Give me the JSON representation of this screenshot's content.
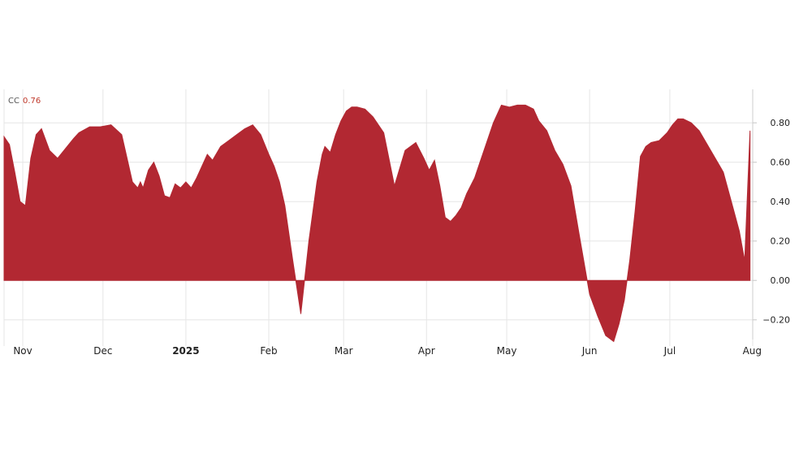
{
  "chart_data": {
    "type": "area",
    "title": "",
    "xlabel": "",
    "ylabel": "",
    "x_range": [
      "2024-10-25",
      "2025-08-01"
    ],
    "ylim": [
      -0.3,
      0.97
    ],
    "y_ticks": [
      0.8,
      0.6,
      0.4,
      0.2,
      0.0,
      -0.2
    ],
    "y_tick_labels": [
      "0.80",
      "0.60",
      "0.40",
      "0.20",
      "0.00",
      "−0.20"
    ],
    "x_ticks": [
      {
        "date": "2024-11-01",
        "label": "Nov",
        "bold": false
      },
      {
        "date": "2024-12-01",
        "label": "Dec",
        "bold": false
      },
      {
        "date": "2025-01-01",
        "label": "2025",
        "bold": true
      },
      {
        "date": "2025-02-01",
        "label": "Feb",
        "bold": false
      },
      {
        "date": "2025-03-01",
        "label": "Mar",
        "bold": false
      },
      {
        "date": "2025-04-01",
        "label": "Apr",
        "bold": false
      },
      {
        "date": "2025-05-01",
        "label": "May",
        "bold": false
      },
      {
        "date": "2025-06-01",
        "label": "Jun",
        "bold": false
      },
      {
        "date": "2025-07-01",
        "label": "Jul",
        "bold": false
      },
      {
        "date": "2025-08-01",
        "label": "Aug",
        "bold": false
      }
    ],
    "grid": true,
    "legend": {
      "name": "CC",
      "value": "0.76",
      "placement": "top-left"
    },
    "colors": {
      "series": "#b22832",
      "legend_value": "#c0392b"
    },
    "series": [
      {
        "x": [
          "2024-10-25",
          "2024-10-27",
          "2024-10-29",
          "2024-10-31",
          "2024-11-02",
          "2024-11-04",
          "2024-11-06",
          "2024-11-08",
          "2024-11-11",
          "2024-11-14",
          "2024-11-17",
          "2024-11-20",
          "2024-11-22",
          "2024-11-26",
          "2024-11-30",
          "2024-12-04",
          "2024-12-08",
          "2024-12-10",
          "2024-12-12",
          "2024-12-14",
          "2024-12-15",
          "2024-12-16",
          "2024-12-18",
          "2024-12-20",
          "2024-12-22",
          "2024-12-24",
          "2024-12-26",
          "2024-12-28",
          "2024-12-30",
          "2025-01-01",
          "2025-01-03",
          "2025-01-05",
          "2025-01-07",
          "2025-01-09",
          "2025-01-11",
          "2025-01-14",
          "2025-01-17",
          "2025-01-20",
          "2025-01-23",
          "2025-01-26",
          "2025-01-29",
          "2025-02-01",
          "2025-02-03",
          "2025-02-05",
          "2025-02-07",
          "2025-02-10",
          "2025-02-13",
          "2025-02-16",
          "2025-02-19",
          "2025-02-21",
          "2025-02-22",
          "2025-02-24",
          "2025-02-26",
          "2025-02-28",
          "2025-03-02",
          "2025-03-04",
          "2025-03-06",
          "2025-03-09",
          "2025-03-12",
          "2025-03-16",
          "2025-03-20",
          "2025-03-24",
          "2025-03-28",
          "2025-03-31",
          "2025-04-02",
          "2025-04-04",
          "2025-04-06",
          "2025-04-08",
          "2025-04-10",
          "2025-04-12",
          "2025-04-14",
          "2025-04-16",
          "2025-04-19",
          "2025-04-21",
          "2025-04-23",
          "2025-04-26",
          "2025-04-29",
          "2025-05-02",
          "2025-05-05",
          "2025-05-08",
          "2025-05-11",
          "2025-05-13",
          "2025-05-16",
          "2025-05-19",
          "2025-05-22",
          "2025-05-25",
          "2025-05-28",
          "2025-06-01",
          "2025-06-04",
          "2025-06-07",
          "2025-06-10",
          "2025-06-12",
          "2025-06-14",
          "2025-06-16",
          "2025-06-18",
          "2025-06-20",
          "2025-06-22",
          "2025-06-24",
          "2025-06-27",
          "2025-06-30",
          "2025-07-02",
          "2025-07-04",
          "2025-07-06",
          "2025-07-09",
          "2025-07-12",
          "2025-07-15",
          "2025-07-18",
          "2025-07-21",
          "2025-07-24",
          "2025-07-27",
          "2025-07-29",
          "2025-07-31"
        ],
        "values": [
          0.73,
          0.69,
          0.55,
          0.4,
          0.38,
          0.62,
          0.74,
          0.77,
          0.66,
          0.62,
          0.67,
          0.72,
          0.75,
          0.78,
          0.78,
          0.79,
          0.74,
          0.62,
          0.5,
          0.47,
          0.5,
          0.47,
          0.56,
          0.6,
          0.53,
          0.43,
          0.42,
          0.49,
          0.47,
          0.5,
          0.47,
          0.52,
          0.58,
          0.64,
          0.61,
          0.68,
          0.71,
          0.74,
          0.77,
          0.79,
          0.74,
          0.64,
          0.58,
          0.5,
          0.38,
          0.1,
          -0.17,
          0.2,
          0.5,
          0.64,
          0.68,
          0.65,
          0.74,
          0.81,
          0.86,
          0.88,
          0.88,
          0.87,
          0.83,
          0.75,
          0.48,
          0.66,
          0.7,
          0.62,
          0.56,
          0.61,
          0.48,
          0.32,
          0.3,
          0.33,
          0.37,
          0.44,
          0.52,
          0.6,
          0.68,
          0.8,
          0.89,
          0.88,
          0.89,
          0.89,
          0.87,
          0.81,
          0.76,
          0.66,
          0.59,
          0.48,
          0.24,
          -0.07,
          -0.18,
          -0.28,
          -0.31,
          -0.22,
          -0.1,
          0.1,
          0.35,
          0.63,
          0.68,
          0.7,
          0.71,
          0.75,
          0.79,
          0.82,
          0.82,
          0.8,
          0.76,
          0.69,
          0.62,
          0.55,
          0.4,
          0.25,
          0.1,
          0.76
        ],
        "x2": [],
        "values2": []
      }
    ]
  }
}
